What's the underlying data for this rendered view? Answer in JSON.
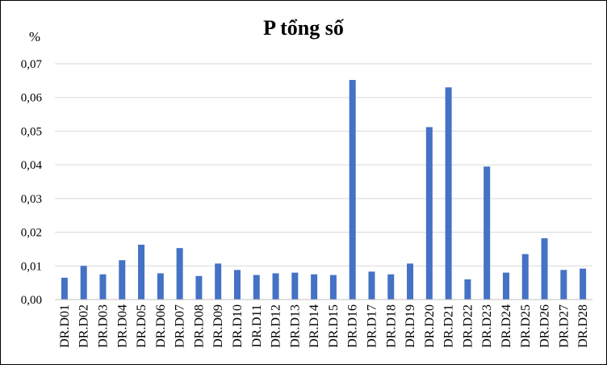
{
  "chart_data": {
    "type": "bar",
    "title": "P tổng số",
    "ylabel": "%",
    "xlabel": "",
    "ylim": [
      0,
      0.07
    ],
    "yticks": [
      "0,00",
      "0,01",
      "0,02",
      "0,03",
      "0,04",
      "0,05",
      "0,06",
      "0,07"
    ],
    "grid": true,
    "legend": "none",
    "bar_color": "#4472c4",
    "categories": [
      "DR.D01",
      "DR.D02",
      "DR.D03",
      "DR.D04",
      "DR.D05",
      "DR.D06",
      "DR.D07",
      "DR.D08",
      "DR.D09",
      "DR.D10",
      "DR.D11",
      "DR.D12",
      "DR.D13",
      "DR.D14",
      "DR.D15",
      "DR.D16",
      "DR.D17",
      "DR.D18",
      "DR.D19",
      "DR.D20",
      "DR.D21",
      "DR.D22",
      "DR.D23",
      "DR.D24",
      "DR.D25",
      "DR.D26",
      "DR.D27",
      "DR.D28"
    ],
    "values": [
      0.0065,
      0.01,
      0.0075,
      0.0117,
      0.0163,
      0.0078,
      0.0153,
      0.007,
      0.0107,
      0.0088,
      0.0073,
      0.0078,
      0.008,
      0.0075,
      0.0073,
      0.0652,
      0.0083,
      0.0075,
      0.0107,
      0.0512,
      0.063,
      0.006,
      0.0395,
      0.008,
      0.0135,
      0.0182,
      0.0088,
      0.0092
    ]
  }
}
